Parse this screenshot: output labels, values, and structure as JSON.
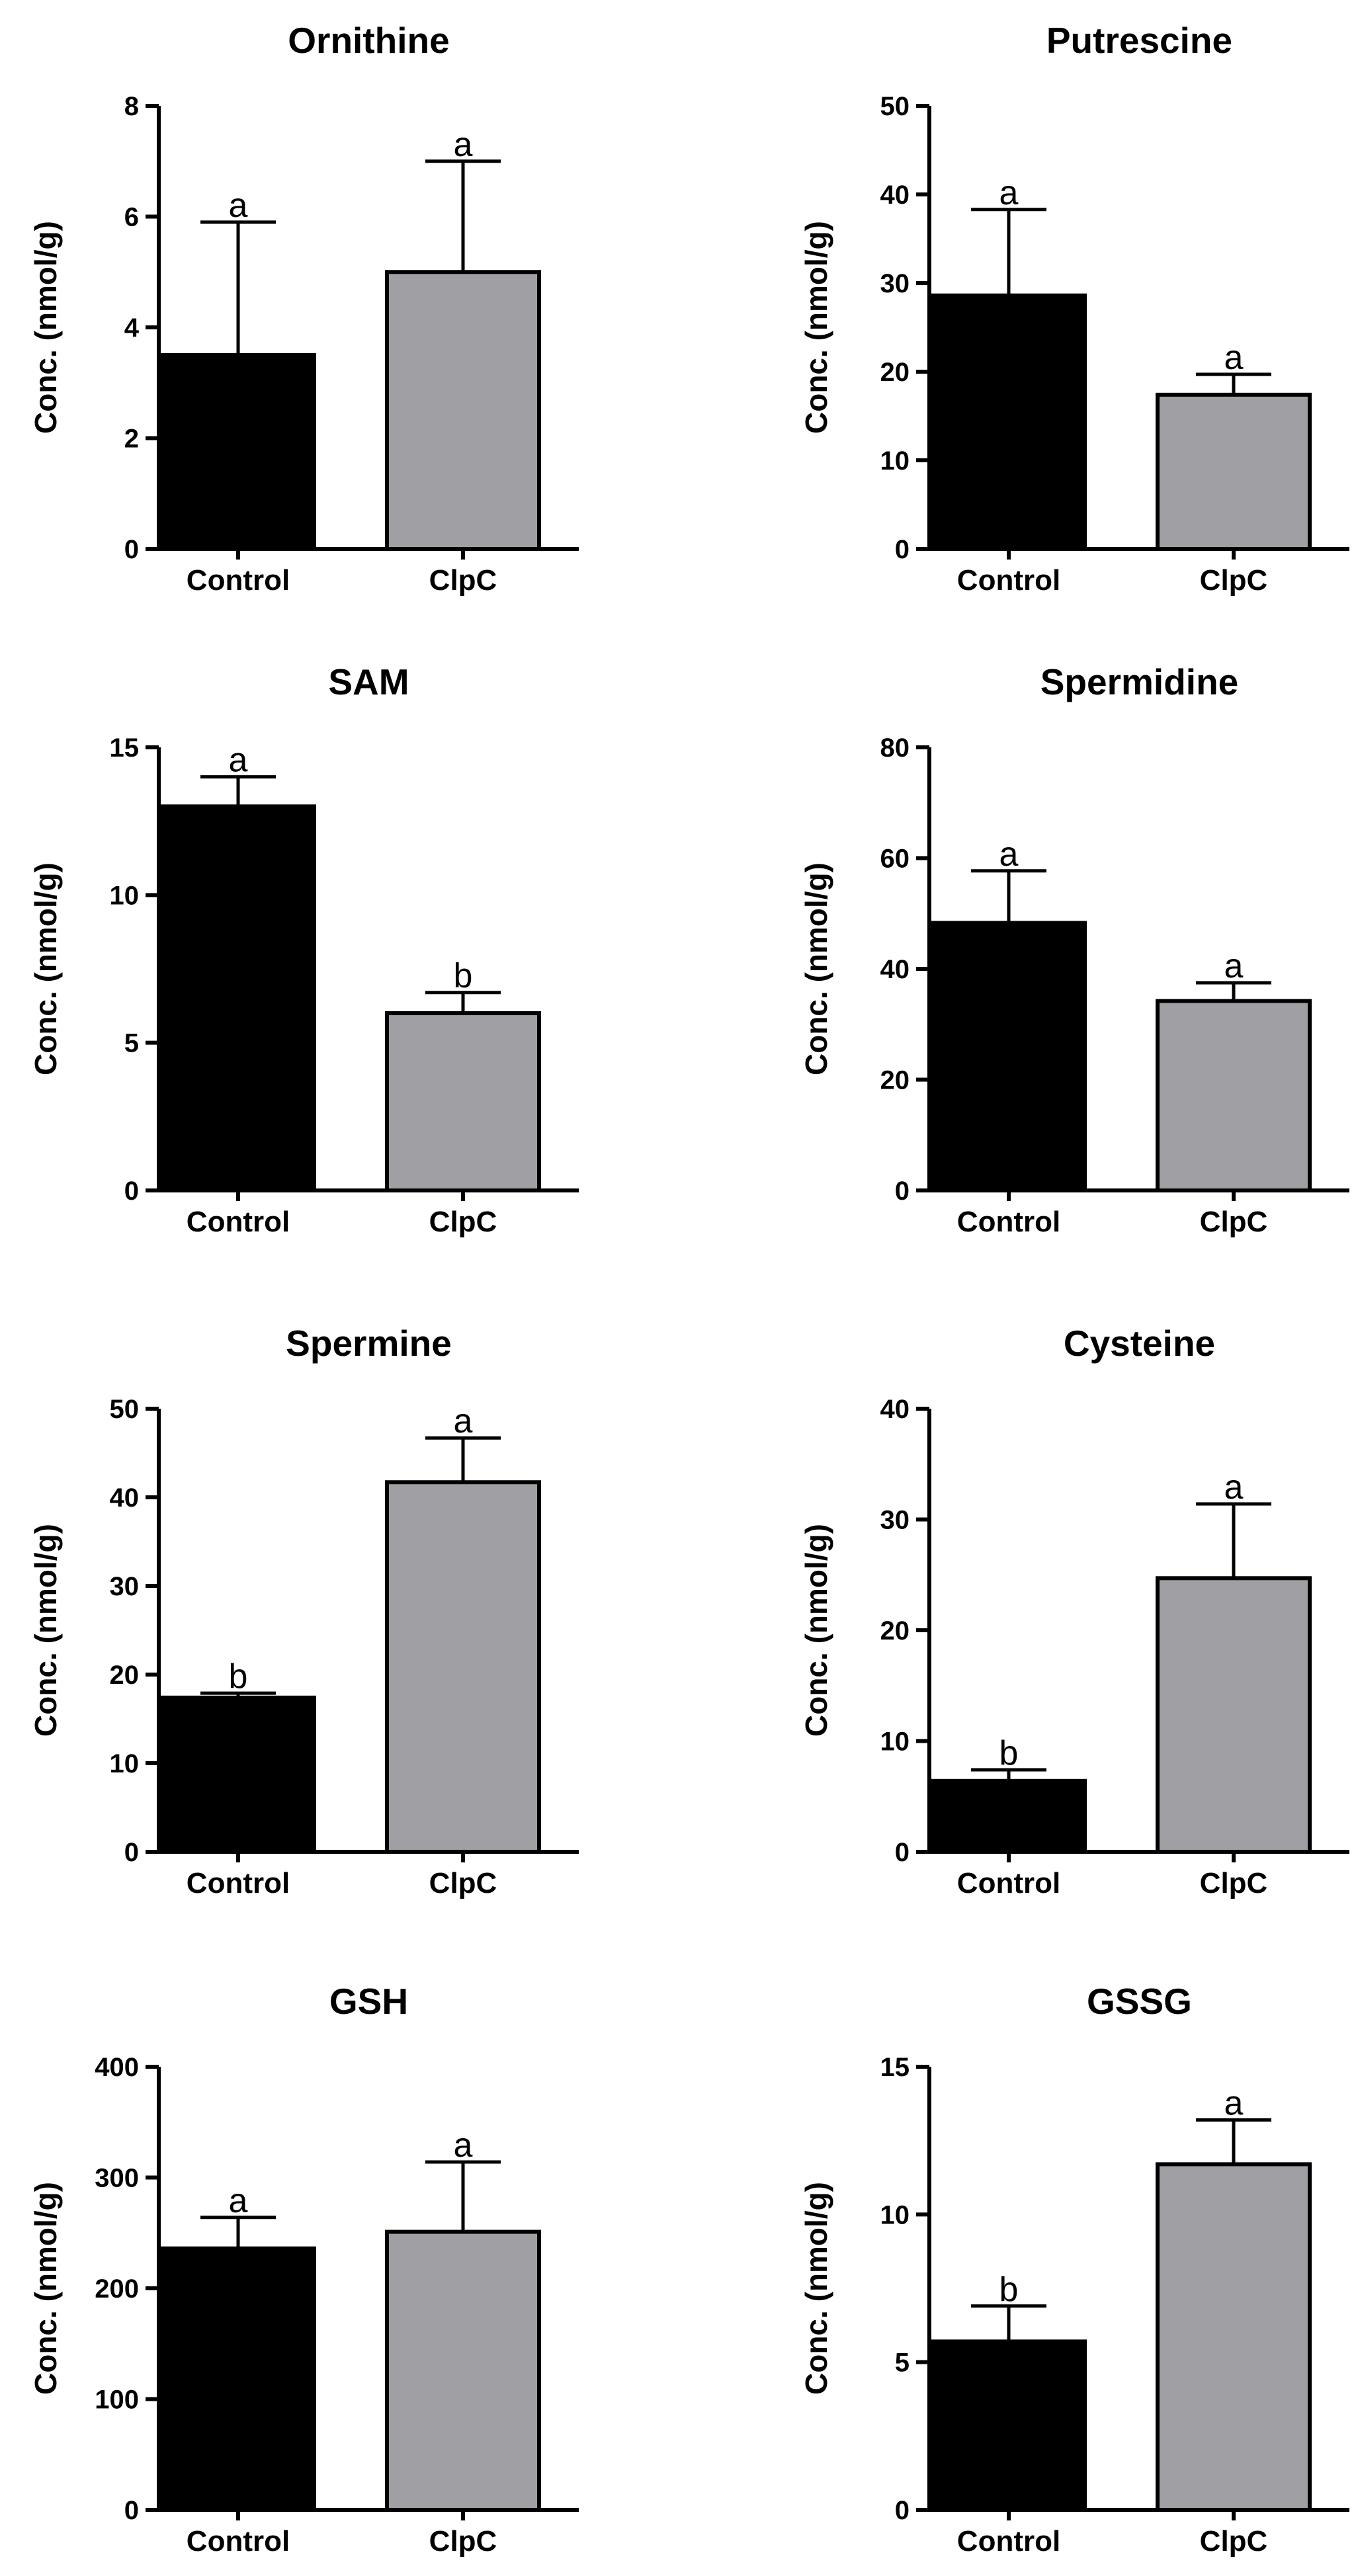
{
  "chart_data": [
    {
      "type": "bar",
      "title": "Ornithine",
      "ylabel": "Conc. (nmol/g)",
      "categories": [
        "Control",
        "ClpC"
      ],
      "values": [
        3.5,
        5.0
      ],
      "errors": [
        2.4,
        2.0
      ],
      "significance": [
        "a",
        "a"
      ],
      "ylim": [
        0,
        8
      ],
      "yticks": [
        "0",
        "2",
        "4",
        "6",
        "8"
      ],
      "colors": [
        "#000000",
        "#a0a0a4"
      ]
    },
    {
      "type": "bar",
      "title": "Putrescine",
      "ylabel": "Conc. (nmol/g)",
      "categories": [
        "Control",
        "ClpC"
      ],
      "values": [
        28.6,
        17.4
      ],
      "errors": [
        9.7,
        2.3
      ],
      "significance": [
        "a",
        "a"
      ],
      "ylim": [
        0,
        50
      ],
      "yticks": [
        "0",
        "10",
        "20",
        "30",
        "40",
        "50"
      ],
      "colors": [
        "#000000",
        "#a0a0a4"
      ]
    },
    {
      "type": "bar",
      "title": "SAM",
      "ylabel": "Conc. (nmol/g)",
      "categories": [
        "Control",
        "ClpC"
      ],
      "values": [
        13.0,
        6.0
      ],
      "errors": [
        1.0,
        0.7
      ],
      "significance": [
        "a",
        "b"
      ],
      "ylim": [
        0,
        15
      ],
      "yticks": [
        "0",
        "5",
        "10",
        "15"
      ],
      "colors": [
        "#000000",
        "#a0a0a4"
      ]
    },
    {
      "type": "bar",
      "title": "Spermidine",
      "ylabel": "Conc. (nmol/g)",
      "categories": [
        "Control",
        "ClpC"
      ],
      "values": [
        48.3,
        34.2
      ],
      "errors": [
        9.4,
        3.3
      ],
      "significance": [
        "a",
        "a"
      ],
      "ylim": [
        0,
        80
      ],
      "yticks": [
        "0",
        "20",
        "40",
        "60",
        "80"
      ],
      "colors": [
        "#000000",
        "#a0a0a4"
      ]
    },
    {
      "type": "bar",
      "title": "Spermine",
      "ylabel": "Conc. (nmol/g)",
      "categories": [
        "Control",
        "ClpC"
      ],
      "values": [
        17.4,
        41.7
      ],
      "errors": [
        0.5,
        5.0
      ],
      "significance": [
        "b",
        "a"
      ],
      "ylim": [
        0,
        50
      ],
      "yticks": [
        "0",
        "10",
        "20",
        "30",
        "40",
        "50"
      ],
      "colors": [
        "#000000",
        "#a0a0a4"
      ]
    },
    {
      "type": "bar",
      "title": "Cysteine",
      "ylabel": "Conc. (nmol/g)",
      "categories": [
        "Control",
        "ClpC"
      ],
      "values": [
        6.4,
        24.7
      ],
      "errors": [
        1.0,
        6.7
      ],
      "significance": [
        "b",
        "a"
      ],
      "ylim": [
        0,
        40
      ],
      "yticks": [
        "0",
        "10",
        "20",
        "30",
        "40"
      ],
      "colors": [
        "#000000",
        "#a0a0a4"
      ]
    },
    {
      "type": "bar",
      "title": "GSH",
      "ylabel": "Conc. (nmol/g)",
      "categories": [
        "Control",
        "ClpC"
      ],
      "values": [
        236,
        251
      ],
      "errors": [
        28,
        63
      ],
      "significance": [
        "a",
        "a"
      ],
      "ylim": [
        0,
        400
      ],
      "yticks": [
        "0",
        "100",
        "200",
        "300",
        "400"
      ],
      "colors": [
        "#000000",
        "#a0a0a4"
      ]
    },
    {
      "type": "bar",
      "title": "GSSG",
      "ylabel": "Conc. (nmol/g)",
      "categories": [
        "Control",
        "ClpC"
      ],
      "values": [
        5.7,
        11.7
      ],
      "errors": [
        1.2,
        1.5
      ],
      "significance": [
        "b",
        "a"
      ],
      "ylim": [
        0,
        15
      ],
      "yticks": [
        "0",
        "5",
        "10",
        "15"
      ],
      "colors": [
        "#000000",
        "#a0a0a4"
      ]
    }
  ]
}
